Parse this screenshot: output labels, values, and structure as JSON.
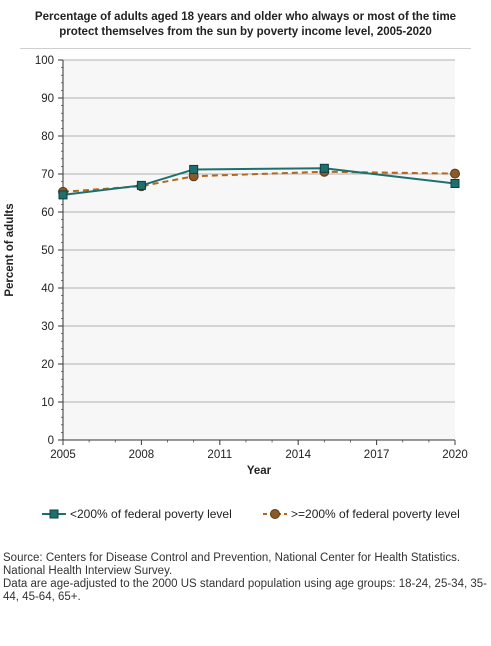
{
  "chart_data": {
    "type": "line",
    "title": "Percentage of adults aged 18 years and older who always or most of the time protect themselves from the sun by poverty income level, 2005-2020",
    "xlabel": "Year",
    "ylabel": "Percent of adults",
    "xlim": [
      2005,
      2020
    ],
    "ylim": [
      0,
      100
    ],
    "x_ticks": [
      "2005",
      "2008",
      "2011",
      "2014",
      "2017",
      "2020"
    ],
    "y_ticks": [
      "0",
      "10",
      "20",
      "30",
      "40",
      "50",
      "60",
      "70",
      "80",
      "90",
      "100"
    ],
    "grid": true,
    "legend_position": "bottom",
    "series": [
      {
        "name": "<200% of federal poverty level",
        "color": "#1f6f6f",
        "marker": "square",
        "line_style": "solid",
        "x": [
          2005,
          2008,
          2010,
          2015,
          2020
        ],
        "y": [
          64.5,
          67.0,
          71.2,
          71.5,
          67.5
        ]
      },
      {
        "name": ">=200% of federal poverty level",
        "color": "#b5651d",
        "marker": "circle",
        "line_style": "dashed",
        "x": [
          2005,
          2008,
          2010,
          2015,
          2020
        ],
        "y": [
          65.3,
          66.8,
          69.4,
          70.6,
          70.1
        ]
      }
    ]
  },
  "notes": {
    "source": "Source: Centers for Disease Control and Prevention, National Center for Health Statistics. National Health Interview Survey.",
    "age_adjust": "Data are age-adjusted to the 2000 US standard population using age groups: 18-24, 25-34, 35-44, 45-64, 65+."
  }
}
